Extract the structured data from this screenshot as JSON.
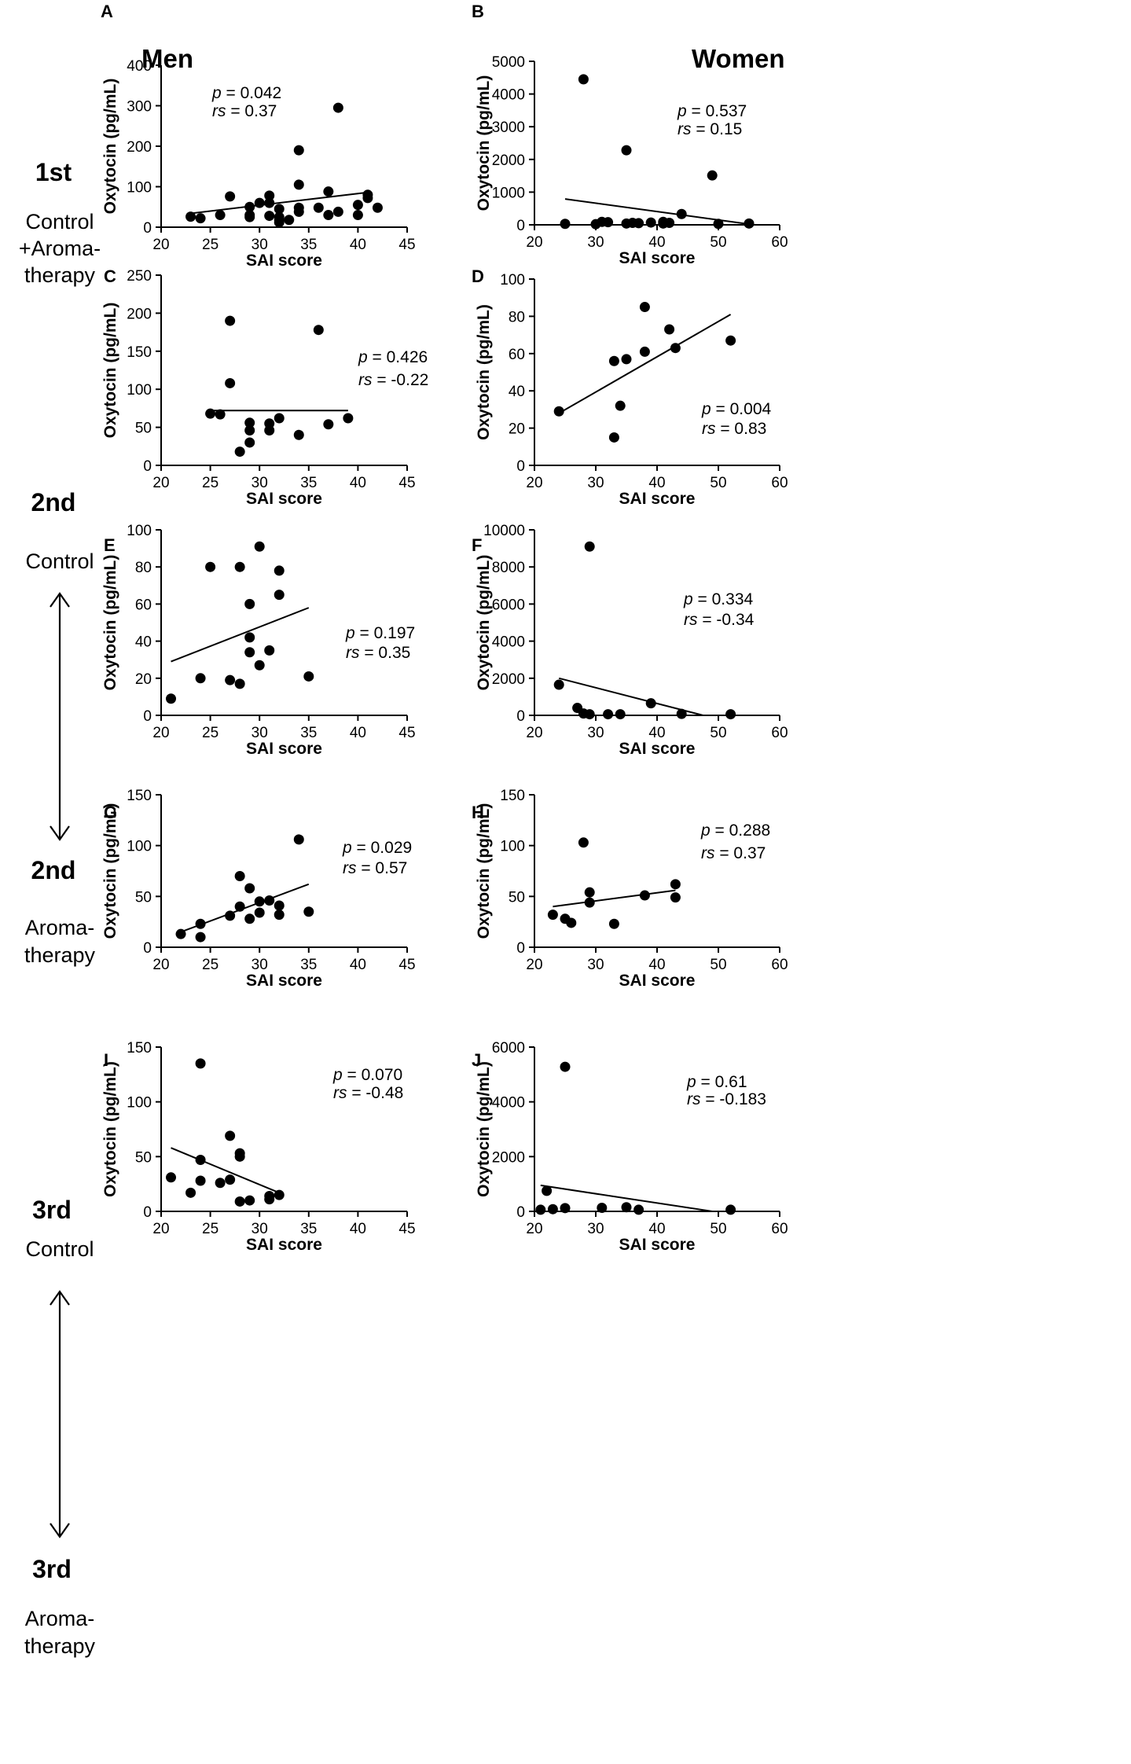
{
  "columns": {
    "men": "Men",
    "women": "Women"
  },
  "rows": {
    "r1": {
      "visit": "1st",
      "line1": "Control",
      "line2": "+Aroma-",
      "line3": "therapy"
    },
    "r2": {
      "visit": "2nd",
      "line1": "Control"
    },
    "r3": {
      "visit": "2nd",
      "line1": "Aroma-",
      "line2": "therapy"
    },
    "r4": {
      "visit": "3rd",
      "line1": "Control"
    },
    "r5": {
      "visit": "3rd",
      "line1": "Aroma-",
      "line2": "therapy"
    }
  },
  "chart_data": [
    {
      "panel": "A",
      "type": "scatter",
      "xlabel": "SAI score",
      "ylabel": "Oxytocin (pg/mL)",
      "xlim": [
        20,
        45
      ],
      "ylim": [
        0,
        400
      ],
      "xticks": [
        20,
        25,
        30,
        35,
        40,
        45
      ],
      "yticks": [
        0,
        100,
        200,
        300,
        400
      ],
      "p_label": "p",
      "p_value": "= 0.042",
      "rs_label": "rs",
      "rs_value": "= 0.37",
      "points": [
        [
          23,
          26
        ],
        [
          24,
          22
        ],
        [
          26,
          30
        ],
        [
          27,
          76
        ],
        [
          29,
          50
        ],
        [
          29,
          30
        ],
        [
          29,
          25
        ],
        [
          30,
          60
        ],
        [
          31,
          78
        ],
        [
          31,
          60
        ],
        [
          31,
          28
        ],
        [
          32,
          45
        ],
        [
          32,
          25
        ],
        [
          32,
          18
        ],
        [
          32,
          12
        ],
        [
          33,
          18
        ],
        [
          34,
          190
        ],
        [
          34,
          105
        ],
        [
          34,
          48
        ],
        [
          34,
          38
        ],
        [
          36,
          48
        ],
        [
          37,
          88
        ],
        [
          37,
          30
        ],
        [
          38,
          295
        ],
        [
          38,
          38
        ],
        [
          40,
          55
        ],
        [
          40,
          30
        ],
        [
          41,
          80
        ],
        [
          41,
          72
        ],
        [
          42,
          48
        ]
      ],
      "fit": [
        [
          23,
          34
        ],
        [
          41,
          86
        ]
      ]
    },
    {
      "panel": "B",
      "type": "scatter",
      "xlabel": "SAI score",
      "ylabel": "Oxytocin (pg/mL)",
      "xlim": [
        20,
        60
      ],
      "ylim": [
        0,
        5000
      ],
      "xticks": [
        20,
        30,
        40,
        50,
        60
      ],
      "yticks": [
        0,
        1000,
        2000,
        3000,
        4000,
        5000
      ],
      "p_label": "p",
      "p_value": "= 0.537",
      "rs_label": "rs",
      "rs_value": "= 0.15",
      "points": [
        [
          25,
          30
        ],
        [
          28,
          4450
        ],
        [
          30,
          20
        ],
        [
          31,
          90
        ],
        [
          32,
          80
        ],
        [
          35,
          2280
        ],
        [
          35,
          40
        ],
        [
          36,
          60
        ],
        [
          37,
          50
        ],
        [
          39,
          70
        ],
        [
          41,
          90
        ],
        [
          41,
          40
        ],
        [
          42,
          60
        ],
        [
          44,
          330
        ],
        [
          49,
          1510
        ],
        [
          50,
          30
        ],
        [
          55,
          40
        ]
      ],
      "fit": [
        [
          25,
          790
        ],
        [
          55,
          20
        ]
      ]
    },
    {
      "panel": "C",
      "type": "scatter",
      "xlabel": "SAI score",
      "ylabel": "Oxytocin (pg/mL)",
      "xlim": [
        20,
        45
      ],
      "ylim": [
        0,
        250
      ],
      "xticks": [
        20,
        25,
        30,
        35,
        40,
        45
      ],
      "yticks": [
        0,
        50,
        100,
        150,
        200,
        250
      ],
      "p_label": "p",
      "p_value": "= 0.426",
      "rs_label": "rs",
      "rs_value": "= -0.22",
      "points": [
        [
          25,
          68
        ],
        [
          26,
          67
        ],
        [
          27,
          190
        ],
        [
          27,
          108
        ],
        [
          28,
          18
        ],
        [
          29,
          56
        ],
        [
          29,
          46
        ],
        [
          29,
          30
        ],
        [
          31,
          55
        ],
        [
          31,
          46
        ],
        [
          32,
          62
        ],
        [
          34,
          40
        ],
        [
          36,
          178
        ],
        [
          37,
          54
        ],
        [
          39,
          62
        ]
      ],
      "fit": [
        [
          25,
          72
        ],
        [
          39,
          72
        ]
      ]
    },
    {
      "panel": "D",
      "type": "scatter",
      "xlabel": "SAI score",
      "ylabel": "Oxytocin (pg/mL)",
      "xlim": [
        20,
        60
      ],
      "ylim": [
        0,
        100
      ],
      "xticks": [
        20,
        30,
        40,
        50,
        60
      ],
      "yticks": [
        0,
        20,
        40,
        60,
        80,
        100
      ],
      "p_label": "p",
      "p_value": "= 0.004",
      "rs_label": "rs",
      "rs_value": "= 0.83",
      "points": [
        [
          24,
          29
        ],
        [
          33,
          56
        ],
        [
          33,
          15
        ],
        [
          34,
          32
        ],
        [
          35,
          57
        ],
        [
          38,
          85
        ],
        [
          38,
          61
        ],
        [
          42,
          73
        ],
        [
          43,
          63
        ],
        [
          52,
          67
        ]
      ],
      "fit": [
        [
          24,
          28
        ],
        [
          52,
          81
        ]
      ]
    },
    {
      "panel": "E",
      "type": "scatter",
      "xlabel": "SAI score",
      "ylabel": "Oxytocin (pg/mL)",
      "xlim": [
        20,
        45
      ],
      "ylim": [
        0,
        100
      ],
      "xticks": [
        20,
        25,
        30,
        35,
        40,
        45
      ],
      "yticks": [
        0,
        20,
        40,
        60,
        80,
        100
      ],
      "p_label": "p",
      "p_value": "= 0.197",
      "rs_label": "rs",
      "rs_value": "= 0.35",
      "points": [
        [
          21,
          9
        ],
        [
          24,
          20
        ],
        [
          25,
          80
        ],
        [
          27,
          19
        ],
        [
          28,
          80
        ],
        [
          28,
          17
        ],
        [
          29,
          60
        ],
        [
          29,
          42
        ],
        [
          29,
          34
        ],
        [
          30,
          91
        ],
        [
          30,
          27
        ],
        [
          31,
          35
        ],
        [
          32,
          78
        ],
        [
          32,
          65
        ],
        [
          35,
          21
        ]
      ],
      "fit": [
        [
          21,
          29
        ],
        [
          35,
          58
        ]
      ]
    },
    {
      "panel": "F",
      "type": "scatter",
      "xlabel": "SAI score",
      "ylabel": "Oxytocin (pg/mL)",
      "xlim": [
        20,
        60
      ],
      "ylim": [
        0,
        10000
      ],
      "xticks": [
        20,
        30,
        40,
        50,
        60
      ],
      "yticks": [
        0,
        2000,
        4000,
        6000,
        8000,
        10000
      ],
      "p_label": "p",
      "p_value": "= 0.334",
      "rs_label": "rs",
      "rs_value": "= -0.34",
      "points": [
        [
          24,
          1650
        ],
        [
          27,
          400
        ],
        [
          28,
          100
        ],
        [
          29,
          9100
        ],
        [
          29,
          60
        ],
        [
          32,
          60
        ],
        [
          34,
          60
        ],
        [
          39,
          650
        ],
        [
          44,
          80
        ],
        [
          52,
          60
        ]
      ],
      "fit": [
        [
          24,
          2000
        ],
        [
          47.5,
          0
        ]
      ]
    },
    {
      "panel": "G",
      "type": "scatter",
      "xlabel": "SAI score",
      "ylabel": "Oxytocin (pg/mL)",
      "xlim": [
        20,
        45
      ],
      "ylim": [
        0,
        150
      ],
      "xticks": [
        20,
        25,
        30,
        35,
        40,
        45
      ],
      "yticks": [
        0,
        50,
        100,
        150
      ],
      "p_label": "p",
      "p_value": "= 0.029",
      "rs_label": "rs",
      "rs_value": "= 0.57",
      "points": [
        [
          22,
          13
        ],
        [
          24,
          23
        ],
        [
          24,
          10
        ],
        [
          27,
          31
        ],
        [
          28,
          70
        ],
        [
          28,
          40
        ],
        [
          29,
          58
        ],
        [
          29,
          28
        ],
        [
          30,
          45
        ],
        [
          30,
          34
        ],
        [
          31,
          46
        ],
        [
          32,
          41
        ],
        [
          32,
          32
        ],
        [
          34,
          106
        ],
        [
          35,
          35
        ]
      ],
      "fit": [
        [
          22,
          15
        ],
        [
          35,
          62
        ]
      ]
    },
    {
      "panel": "H",
      "type": "scatter",
      "xlabel": "SAI score",
      "ylabel": "Oxytocin (pg/mL)",
      "xlim": [
        20,
        60
      ],
      "ylim": [
        0,
        150
      ],
      "xticks": [
        20,
        30,
        40,
        50,
        60
      ],
      "yticks": [
        0,
        50,
        100,
        150
      ],
      "p_label": "p",
      "p_value": "= 0.288",
      "rs_label": "rs",
      "rs_value": "= 0.37",
      "points": [
        [
          23,
          32
        ],
        [
          25,
          28
        ],
        [
          26,
          24
        ],
        [
          28,
          103
        ],
        [
          29,
          54
        ],
        [
          29,
          44
        ],
        [
          33,
          23
        ],
        [
          38,
          51
        ],
        [
          43,
          62
        ],
        [
          43,
          49
        ]
      ],
      "fit": [
        [
          23,
          40
        ],
        [
          43,
          56
        ]
      ]
    },
    {
      "panel": "I",
      "type": "scatter",
      "xlabel": "SAI score",
      "ylabel": "Oxytocin (pg/mL)",
      "xlim": [
        20,
        45
      ],
      "ylim": [
        0,
        150
      ],
      "xticks": [
        20,
        25,
        30,
        35,
        40,
        45
      ],
      "yticks": [
        0,
        50,
        100,
        150
      ],
      "p_label": "p",
      "p_value": "= 0.070",
      "rs_label": "rs",
      "rs_value": "= -0.48",
      "points": [
        [
          21,
          31
        ],
        [
          23,
          17
        ],
        [
          24,
          135
        ],
        [
          24,
          47
        ],
        [
          24,
          28
        ],
        [
          26,
          26
        ],
        [
          27,
          69
        ],
        [
          27,
          29
        ],
        [
          28,
          53
        ],
        [
          28,
          50
        ],
        [
          28,
          9
        ],
        [
          29,
          10
        ],
        [
          31,
          14
        ],
        [
          31,
          11
        ],
        [
          32,
          15
        ]
      ],
      "fit": [
        [
          21,
          58
        ],
        [
          32,
          17
        ]
      ]
    },
    {
      "panel": "J",
      "type": "scatter",
      "xlabel": "SAI score",
      "ylabel": "Oxytocin (pg/mL)",
      "xlim": [
        20,
        60
      ],
      "ylim": [
        0,
        6000
      ],
      "xticks": [
        20,
        30,
        40,
        50,
        60
      ],
      "yticks": [
        0,
        2000,
        4000,
        6000
      ],
      "p_label": "p",
      "p_value": "= 0.61",
      "rs_label": "rs",
      "rs_value": "= -0.183",
      "points": [
        [
          21,
          60
        ],
        [
          22,
          750
        ],
        [
          23,
          80
        ],
        [
          25,
          5280
        ],
        [
          25,
          120
        ],
        [
          31,
          130
        ],
        [
          35,
          150
        ],
        [
          37,
          60
        ],
        [
          52,
          60
        ]
      ],
      "fit": [
        [
          21,
          950
        ],
        [
          49,
          0
        ]
      ]
    }
  ]
}
